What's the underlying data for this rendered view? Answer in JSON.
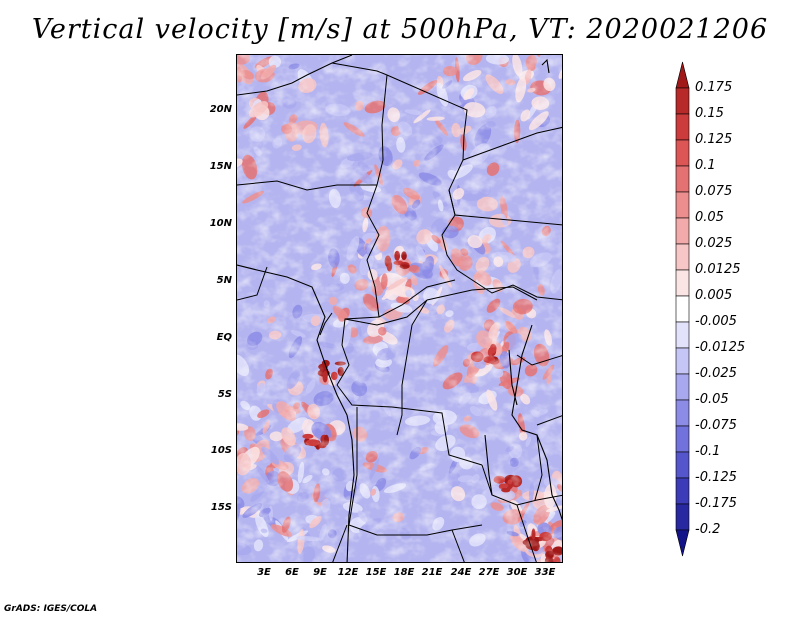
{
  "title": "Vertical velocity [m/s] at 500hPa, VT: 2020021206",
  "map": {
    "variable": "Vertical velocity",
    "units": "m/s",
    "level": "500hPa",
    "valid_time": "2020021206",
    "lat_ticks": [
      "20N",
      "15N",
      "10N",
      "5N",
      "EQ",
      "5S",
      "10S",
      "15S"
    ],
    "lon_ticks": [
      "3E",
      "6E",
      "9E",
      "12E",
      "15E",
      "18E",
      "21E",
      "24E",
      "27E",
      "30E",
      "33E"
    ]
  },
  "colorbar": {
    "levels": [
      "0.175",
      "0.15",
      "0.125",
      "0.1",
      "0.075",
      "0.05",
      "0.025",
      "0.0125",
      "0.005",
      "-0.005",
      "-0.0125",
      "-0.025",
      "-0.05",
      "-0.075",
      "-0.1",
      "-0.125",
      "-0.175",
      "-0.2"
    ],
    "colors": [
      "#a01818",
      "#b82a2a",
      "#cc3c3c",
      "#dc5656",
      "#e57272",
      "#ec8e8e",
      "#f2aaaa",
      "#f7c6c6",
      "#fbe4e4",
      "#ffffff",
      "#e2e2fb",
      "#c6c6f6",
      "#a8a8ef",
      "#8c8ce6",
      "#7272dc",
      "#5656cc",
      "#3c3cb8",
      "#2828a0",
      "#14148a"
    ]
  },
  "credit": "GrADS: IGES/COLA"
}
